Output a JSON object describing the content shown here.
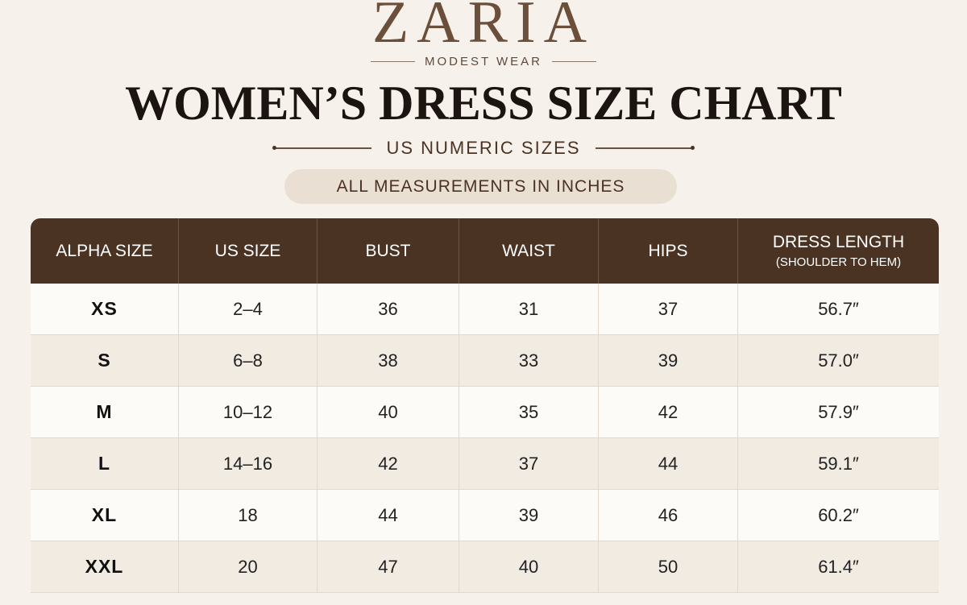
{
  "brand": {
    "name": "ZARIA",
    "tagline": "MODEST WEAR"
  },
  "title": "WOMEN’S DRESS SIZE CHART",
  "subtitle": "US NUMERIC SIZES",
  "note": "ALL MEASUREMENTS IN INCHES",
  "table": {
    "columns": [
      {
        "label": "ALPHA SIZE"
      },
      {
        "label": "US SIZE"
      },
      {
        "label": "BUST"
      },
      {
        "label": "WAIST"
      },
      {
        "label": "HIPS"
      },
      {
        "label": "DRESS LENGTH",
        "note": "(SHOULDER TO HEM)"
      }
    ],
    "rows": [
      [
        "XS",
        "2–4",
        "36",
        "31",
        "37",
        "56.7″"
      ],
      [
        "S",
        "6–8",
        "38",
        "33",
        "39",
        "57.0″"
      ],
      [
        "M",
        "10–12",
        "40",
        "35",
        "42",
        "57.9″"
      ],
      [
        "L",
        "14–16",
        "42",
        "37",
        "44",
        "59.1″"
      ],
      [
        "XL",
        "18",
        "44",
        "39",
        "46",
        "60.2″"
      ],
      [
        "XXL",
        "20",
        "47",
        "40",
        "50",
        "61.4″"
      ]
    ]
  }
}
